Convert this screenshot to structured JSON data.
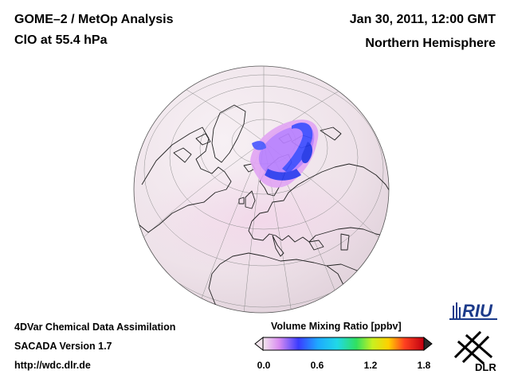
{
  "header": {
    "title": "GOME–2 / MetOp Analysis",
    "species": "ClO at 55.4 hPa",
    "datetime": "Jan 30, 2011, 12:00 GMT",
    "region": "Northern Hemisphere"
  },
  "footer": {
    "line1": "4DVar Chemical Data Assimilation",
    "line2": "SACADA Version 1.7",
    "url": "http://wdc.dlr.de"
  },
  "colorbar": {
    "title": "Volume Mixing Ratio [ppbv]",
    "ticks": [
      "0.0",
      "0.6",
      "1.2",
      "1.8"
    ],
    "min": 0.0,
    "max": 1.8
  },
  "logos": {
    "riu": "RIU",
    "dlr": "DLR"
  },
  "colors": {
    "low": "#f4e6ee",
    "mid": "#c060ff",
    "high": "#1e3cff"
  },
  "icons": [
    "globe-map",
    "riu-logo",
    "dlr-logo"
  ]
}
